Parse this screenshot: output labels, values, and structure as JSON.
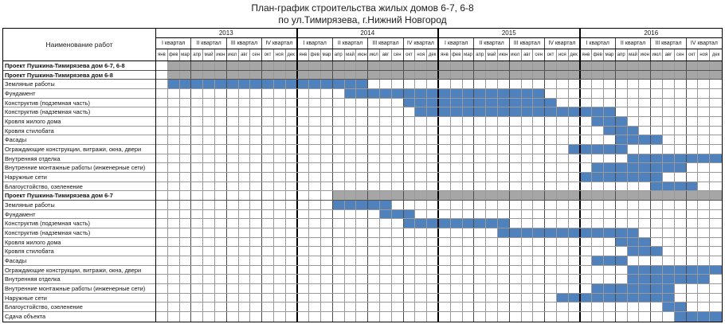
{
  "title": {
    "line1": "План-график строительства жилых домов 6-7, 6-8",
    "line2": "по ул.Тимирязева, г.Нижний Новгород"
  },
  "table": {
    "name_column_header": "Наименование работ",
    "years": [
      "2013",
      "2014",
      "2015",
      "2016"
    ],
    "quarter_labels": [
      "I квартал",
      "II квартал",
      "III квартал",
      "IV квартал"
    ],
    "month_labels": [
      "янв",
      "фев",
      "мар",
      "апр",
      "май",
      "июн",
      "июл",
      "авг",
      "сен",
      "окт",
      "ноя",
      "дек"
    ]
  },
  "colors": {
    "bar_blue": "#4f81bd",
    "bar_gray": "#a6a6a6",
    "grid_month_line": "#999999",
    "grid_year_line": "#000000"
  },
  "chart_data": {
    "type": "gantt",
    "title": "План-график строительства жилых домов 6-7, 6-8 по ул.Тимирязева, г.Нижний Новгород",
    "timeline": {
      "start": "2013-01",
      "end": "2016-12",
      "unit": "month"
    },
    "tasks": [
      {
        "label": "Проект Пушкина-Тимирязева дом 6-7, 6-8",
        "group": true,
        "start": "2013-02",
        "end": "2016-12",
        "color": "gray"
      },
      {
        "label": "Проект Пушкина-Тимирязева дом 6-8",
        "group": true,
        "start": "2013-02",
        "end": "2016-12",
        "color": "gray"
      },
      {
        "label": "Земляные работы",
        "group": false,
        "start": "2013-02",
        "end": "2014-06",
        "color": "blue"
      },
      {
        "label": "Фундамент",
        "group": false,
        "start": "2014-05",
        "end": "2015-09",
        "color": "blue"
      },
      {
        "label": "Конструктив (подземная часть)",
        "group": false,
        "start": "2014-10",
        "end": "2015-10",
        "color": "blue"
      },
      {
        "label": "Конструктив (надземная часть)",
        "group": false,
        "start": "2014-11",
        "end": "2016-03",
        "color": "blue"
      },
      {
        "label": "Кровля жилого дома",
        "group": false,
        "start": "2016-02",
        "end": "2016-04",
        "color": "blue"
      },
      {
        "label": "Кровля стилобата",
        "group": false,
        "start": "2016-03",
        "end": "2016-05",
        "color": "blue"
      },
      {
        "label": "Фасады",
        "group": false,
        "start": "2016-04",
        "end": "2016-07",
        "color": "blue"
      },
      {
        "label": "Ограждающие конструкции, витражи, окна, двери",
        "group": false,
        "start": "2015-12",
        "end": "2016-04",
        "color": "blue"
      },
      {
        "label": "Внутренняя отделка",
        "group": false,
        "start": "2016-05",
        "end": "2016-12",
        "color": "blue"
      },
      {
        "label": "Внутренние монтажные работы (инженерные сети)",
        "group": false,
        "start": "2016-02",
        "end": "2016-09",
        "color": "blue"
      },
      {
        "label": "Наружные сети",
        "group": false,
        "start": "2016-01",
        "end": "2016-07",
        "color": "blue"
      },
      {
        "label": "Благоустойство, озеленение",
        "group": false,
        "start": "2016-07",
        "end": "2016-10",
        "color": "blue"
      },
      {
        "label": "Проект Пушкина-Тимирязева дом 6-7",
        "group": true,
        "start": "2014-04",
        "end": "2016-12",
        "color": "gray"
      },
      {
        "label": "Земляные работы",
        "group": false,
        "start": "2014-04",
        "end": "2014-08",
        "color": "blue"
      },
      {
        "label": "Фундамент",
        "group": false,
        "start": "2014-08",
        "end": "2014-10",
        "color": "blue"
      },
      {
        "label": "Конструктив (подземная часть)",
        "group": false,
        "start": "2014-10",
        "end": "2015-06",
        "color": "blue"
      },
      {
        "label": "Конструктив (надземная часть)",
        "group": false,
        "start": "2015-06",
        "end": "2016-05",
        "color": "blue"
      },
      {
        "label": "Кровля жилого дома",
        "group": false,
        "start": "2016-04",
        "end": "2016-06",
        "color": "blue"
      },
      {
        "label": "Кровля стилобата",
        "group": false,
        "start": "2016-05",
        "end": "2016-07",
        "color": "blue"
      },
      {
        "label": "Фасады",
        "group": false,
        "start": "2016-02",
        "end": "2016-04",
        "color": "blue"
      },
      {
        "label": "Ограждающие конструкции, витражи, окна, двери",
        "group": false,
        "start": "2016-05",
        "end": "2016-12",
        "color": "blue"
      },
      {
        "label": "Внутренняя отделка",
        "group": false,
        "start": "2016-05",
        "end": "2016-11",
        "color": "blue"
      },
      {
        "label": "Внутренние монтажные работы (инженерные сети)",
        "group": false,
        "start": "2016-02",
        "end": "2016-08",
        "color": "blue"
      },
      {
        "label": "Наружные сети",
        "group": false,
        "start": "2015-11",
        "end": "2016-08",
        "color": "blue"
      },
      {
        "label": "Благоустойство, озеленение",
        "group": false,
        "start": "2016-08",
        "end": "2016-09",
        "color": "blue"
      },
      {
        "label": "Сдача объекта",
        "group": false,
        "start": "2016-09",
        "end": "2016-12",
        "color": "blue"
      }
    ]
  }
}
